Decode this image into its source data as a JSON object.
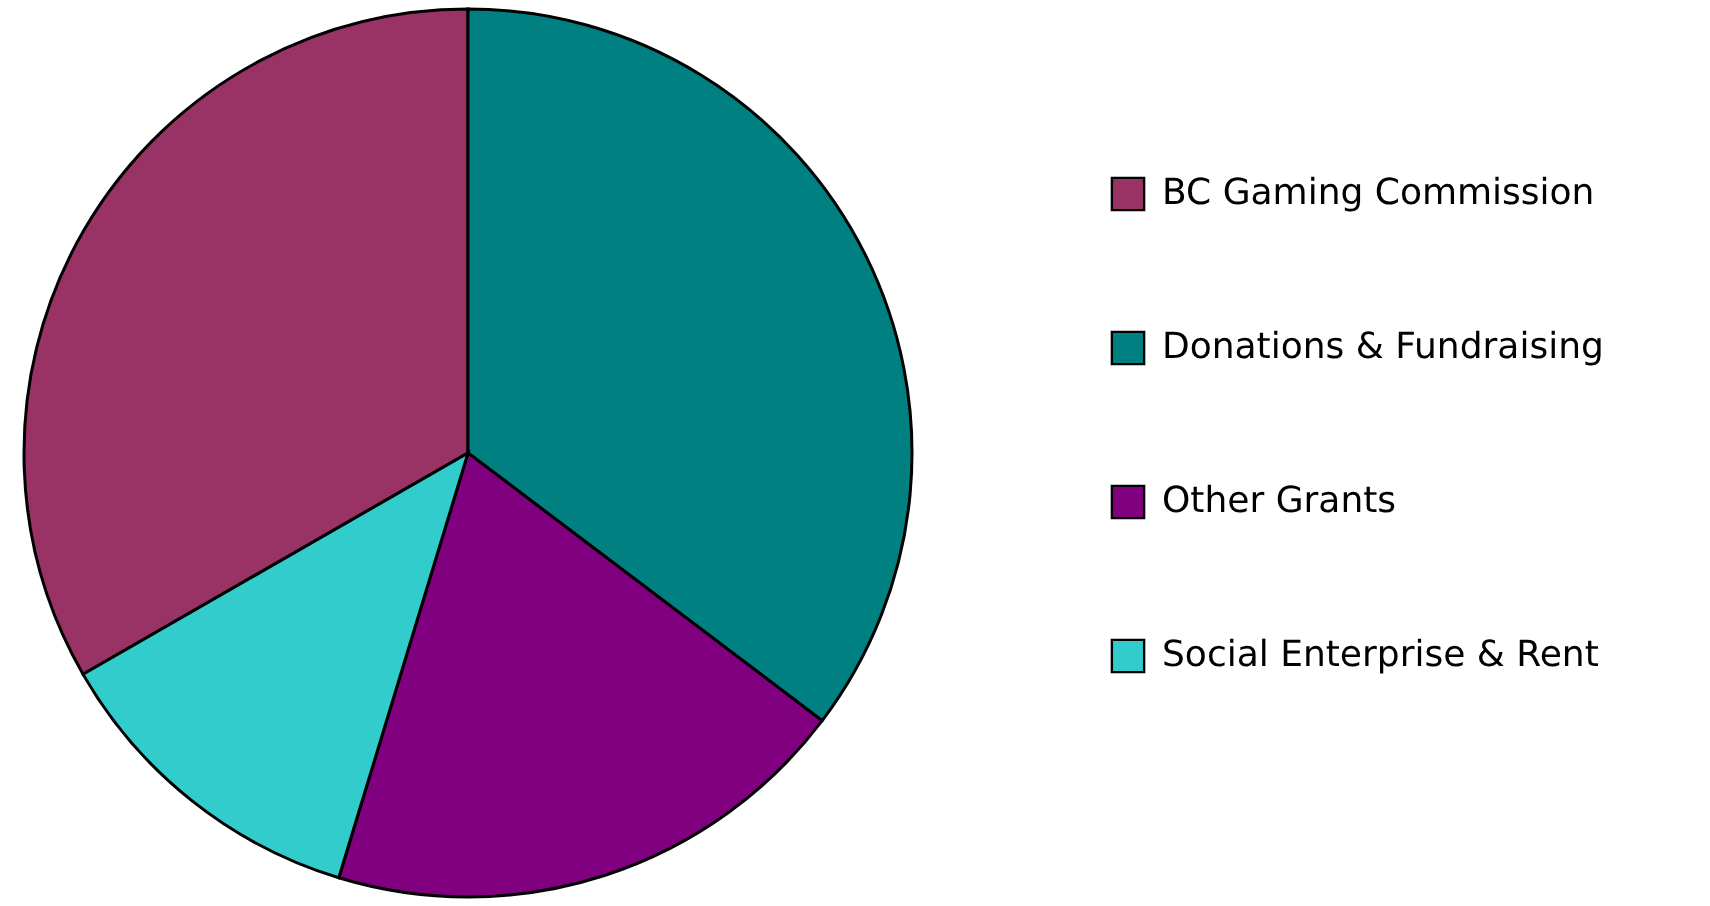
{
  "chart_data": {
    "type": "pie",
    "categories": [
      "BC Gaming Commission",
      "Donations & Fundraising",
      "Other Grants",
      "Social Enterprise & Rent"
    ],
    "values": [
      33.3,
      35.3,
      19.4,
      12.0
    ],
    "colors": [
      "#993366",
      "#008080",
      "#800080",
      "#33cccc"
    ],
    "legend": "right"
  }
}
